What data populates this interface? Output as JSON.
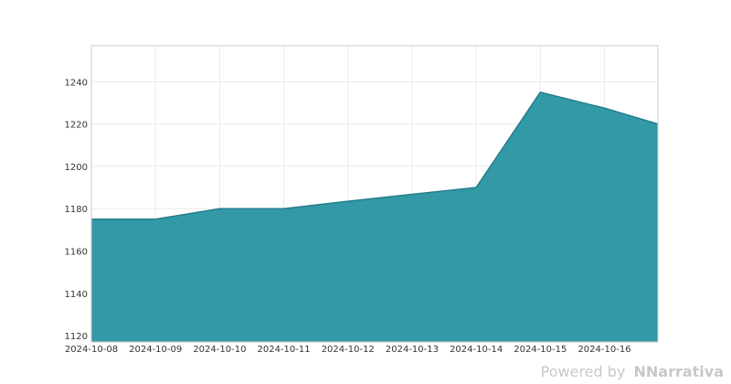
{
  "chart_data": {
    "type": "area",
    "title": "",
    "xlabel": "",
    "ylabel": "",
    "x": [
      "2024-10-08",
      "2024-10-09",
      "2024-10-10",
      "2024-10-11",
      "2024-10-12",
      "2024-10-13",
      "2024-10-14",
      "2024-10-15",
      "2024-10-16",
      "2024-10-16T20:00"
    ],
    "x_tick_labels": [
      "2024-10-08",
      "2024-10-09",
      "2024-10-10",
      "2024-10-11",
      "2024-10-12",
      "2024-10-13",
      "2024-10-14",
      "2024-10-15",
      "2024-10-16"
    ],
    "series": [
      {
        "values": [
          1175,
          1175,
          1180,
          1180,
          1183.5,
          1186.8,
          1190,
          1235,
          1227.5,
          1220
        ]
      }
    ],
    "yticks": [
      1120,
      1140,
      1160,
      1180,
      1200,
      1220,
      1240
    ],
    "ylim": [
      1117,
      1257
    ],
    "grid": true,
    "fill_color": "#3399a6",
    "line_color": "#247f8c"
  },
  "watermark": {
    "text": "Powered by",
    "brand": "Narrativa",
    "logo_glyph": "N"
  }
}
